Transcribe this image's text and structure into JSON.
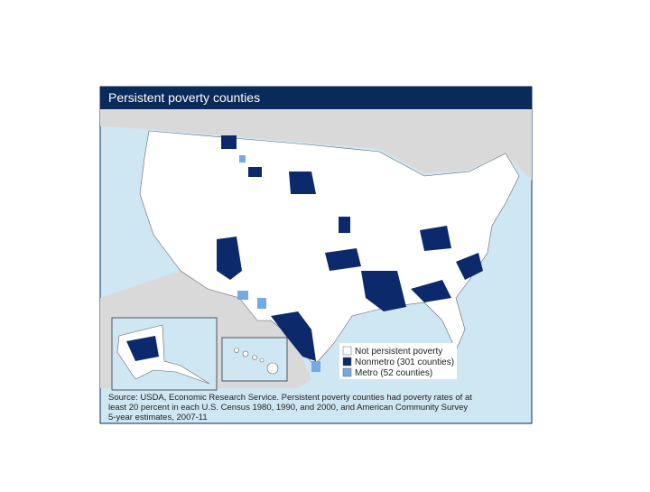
{
  "title": "Persistent poverty counties",
  "legend": [
    {
      "label": "Not persistent poverty",
      "color": "#ffffff"
    },
    {
      "label": "Nonmetro (301 counties)",
      "color": "#0c2a6b"
    },
    {
      "label": "Metro (52 counties)",
      "color": "#74a9e3"
    }
  ],
  "source": [
    "Source: USDA, Economic Research Service. Persistent poverty counties had poverty rates of at",
    "least 20 percent in each U.S. Census 1980, 1990, and 2000, and American Community Survey",
    "5-year estimates, 2007-11"
  ]
}
